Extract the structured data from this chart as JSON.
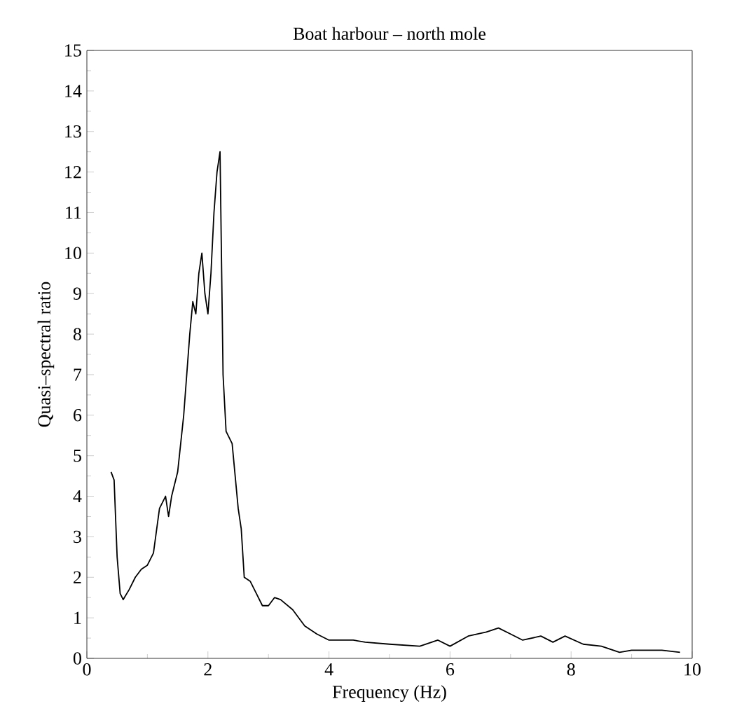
{
  "chart_data": {
    "type": "line",
    "title": "Boat harbour – north mole",
    "xlabel": "Frequency (Hz)",
    "ylabel": "Quasi–spectral ratio",
    "x": [
      0.4,
      0.45,
      0.5,
      0.55,
      0.6,
      0.7,
      0.8,
      0.9,
      1.0,
      1.1,
      1.2,
      1.3,
      1.35,
      1.4,
      1.5,
      1.6,
      1.7,
      1.75,
      1.8,
      1.85,
      1.9,
      1.95,
      2.0,
      2.05,
      2.1,
      2.15,
      2.2,
      2.25,
      2.3,
      2.4,
      2.5,
      2.55,
      2.6,
      2.7,
      2.8,
      2.9,
      3.0,
      3.1,
      3.2,
      3.4,
      3.6,
      3.8,
      4.0,
      4.4,
      4.6,
      5.0,
      5.5,
      5.8,
      6.0,
      6.3,
      6.6,
      6.8,
      7.0,
      7.2,
      7.5,
      7.7,
      7.9,
      8.2,
      8.5,
      8.8,
      9.0,
      9.5,
      9.8
    ],
    "series": [
      {
        "color": "#000000",
        "values": [
          4.6,
          4.4,
          2.5,
          1.6,
          1.45,
          1.7,
          2.0,
          2.2,
          2.3,
          2.6,
          3.7,
          4.0,
          3.5,
          4.0,
          4.6,
          6.0,
          8.0,
          8.8,
          8.5,
          9.5,
          10.0,
          9.0,
          8.5,
          9.5,
          11,
          12,
          12.5,
          7,
          5.6,
          5.3,
          3.7,
          3.2,
          2.0,
          1.9,
          1.6,
          1.3,
          1.3,
          1.5,
          1.45,
          1.2,
          0.8,
          0.6,
          0.45,
          0.45,
          0.4,
          0.35,
          0.3,
          0.45,
          0.3,
          0.55,
          0.65,
          0.75,
          0.6,
          0.45,
          0.55,
          0.4,
          0.55,
          0.35,
          0.3,
          0.15,
          0.2,
          0.2,
          0.15
        ]
      }
    ],
    "xlim": [
      0,
      10
    ],
    "ylim": [
      0,
      15
    ],
    "xticks": [
      0,
      2,
      4,
      6,
      8,
      10
    ],
    "yticks": [
      0,
      1,
      2,
      3,
      4,
      5,
      6,
      7,
      8,
      9,
      10,
      11,
      12,
      13,
      14,
      15
    ],
    "grid": false,
    "marker": "none",
    "line_style": "solid"
  }
}
